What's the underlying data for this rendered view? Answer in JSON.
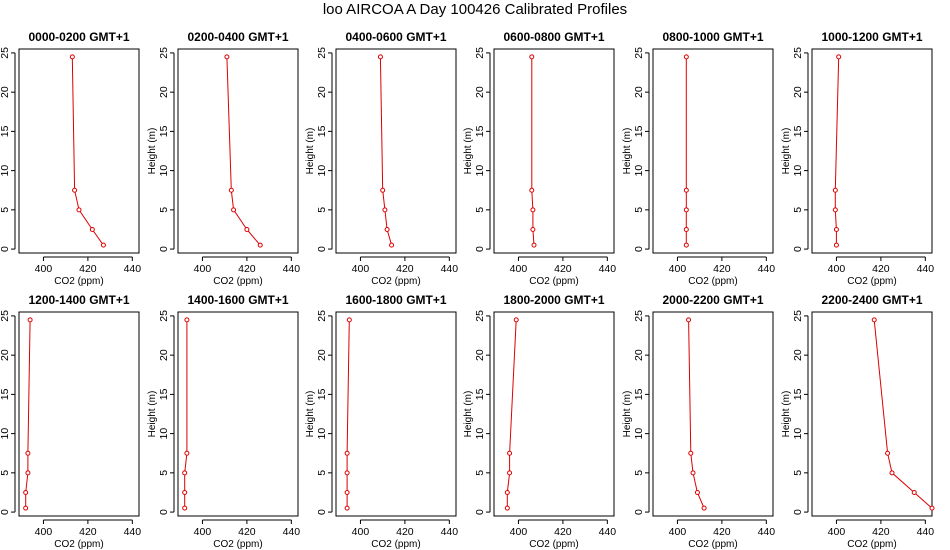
{
  "title": "loo AIRCOA A  Day 100426  Calibrated Profiles",
  "chart_data": {
    "type": "line",
    "title": "loo AIRCOA A  Day 100426  Calibrated Profiles",
    "xlabel": "CO2 (ppm)",
    "ylabel": "Height (m)",
    "xlim": [
      389,
      443
    ],
    "ylim": [
      -0.5,
      25.5
    ],
    "x_ticks": [
      400,
      420,
      440
    ],
    "y_ticks": [
      0,
      5,
      10,
      15,
      20,
      25
    ],
    "series_color": "#dd0000",
    "heights": [
      0.5,
      2.5,
      5,
      7.5,
      24.5
    ],
    "panels": [
      {
        "title": "0000-0200 GMT+1",
        "co2": [
          427,
          422,
          416,
          414,
          413
        ]
      },
      {
        "title": "0200-0400 GMT+1",
        "co2": [
          426,
          420,
          414,
          413,
          411
        ]
      },
      {
        "title": "0400-0600 GMT+1",
        "co2": [
          414,
          412,
          411,
          410,
          409
        ]
      },
      {
        "title": "0600-0800 GMT+1",
        "co2": [
          407,
          406.5,
          406.5,
          406,
          406
        ]
      },
      {
        "title": "0800-1000 GMT+1",
        "co2": [
          404,
          404,
          404,
          404,
          404
        ]
      },
      {
        "title": "1000-1200 GMT+1",
        "co2": [
          400,
          400,
          399.5,
          399.5,
          401
        ]
      },
      {
        "title": "1200-1400 GMT+1",
        "co2": [
          392,
          392,
          393,
          393,
          394
        ]
      },
      {
        "title": "1400-1600 GMT+1",
        "co2": [
          392,
          392,
          392,
          393,
          393
        ]
      },
      {
        "title": "1600-1800 GMT+1",
        "co2": [
          394,
          394,
          394,
          394,
          395
        ]
      },
      {
        "title": "1800-2000 GMT+1",
        "co2": [
          395,
          395,
          396,
          396,
          399
        ]
      },
      {
        "title": "2000-2200 GMT+1",
        "co2": [
          412,
          409,
          407,
          406,
          405
        ]
      },
      {
        "title": "2200-2400 GMT+1",
        "co2": [
          443,
          435,
          425,
          423,
          417
        ]
      }
    ]
  }
}
